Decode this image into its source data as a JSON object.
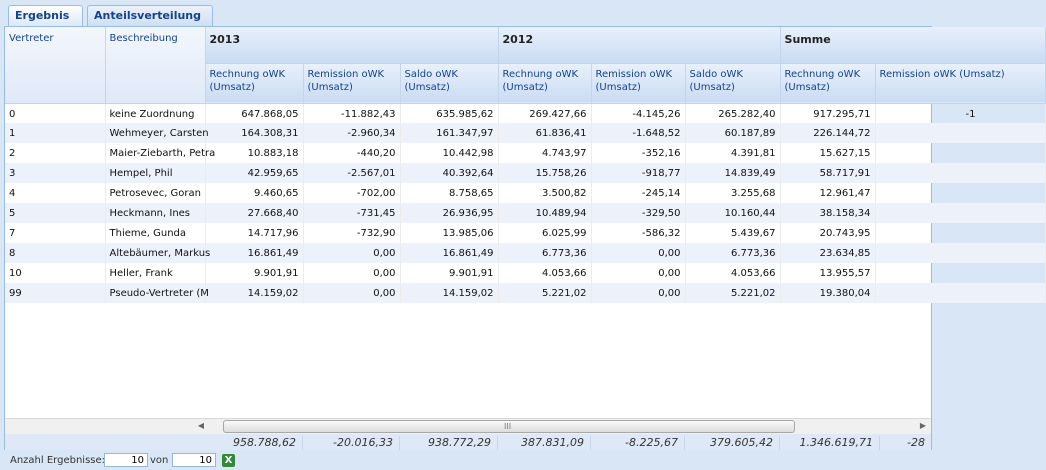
{
  "tabs": [
    {
      "label": "Ergebnis",
      "active": true
    },
    {
      "label": "Anteilsverteilung",
      "active": false
    }
  ],
  "columns": {
    "vertreter": "Vertreter",
    "beschreibung": "Beschreibung",
    "groups": [
      "2013",
      "2012",
      "Summe"
    ],
    "sub": [
      "Rechnung oWK (Umsatz)",
      "Remission oWK (Umsatz)",
      "Saldo oWK (Umsatz)",
      "Rechnung oWK (Umsatz)",
      "Remission oWK (Umsatz)",
      "Saldo oWK (Umsatz)",
      "Rechnung oWK (Umsatz)",
      "Remission oWK (Umsatz)"
    ]
  },
  "rows": [
    {
      "id": "0",
      "name": "keine Zuordnung",
      "v": [
        "647.868,05",
        "-11.882,43",
        "635.985,62",
        "269.427,66",
        "-4.145,26",
        "265.282,40",
        "917.295,71",
        "-1"
      ]
    },
    {
      "id": "1",
      "name": "Wehmeyer, Carsten",
      "v": [
        "164.308,31",
        "-2.960,34",
        "161.347,97",
        "61.836,41",
        "-1.648,52",
        "60.187,89",
        "226.144,72",
        ""
      ]
    },
    {
      "id": "2",
      "name": "Maier-Ziebarth, Petra",
      "v": [
        "10.883,18",
        "-440,20",
        "10.442,98",
        "4.743,97",
        "-352,16",
        "4.391,81",
        "15.627,15",
        ""
      ]
    },
    {
      "id": "3",
      "name": "Hempel, Phil",
      "v": [
        "42.959,65",
        "-2.567,01",
        "40.392,64",
        "15.758,26",
        "-918,77",
        "14.839,49",
        "58.717,91",
        ""
      ]
    },
    {
      "id": "4",
      "name": "Petrosevec, Goran",
      "v": [
        "9.460,65",
        "-702,00",
        "8.758,65",
        "3.500,82",
        "-245,14",
        "3.255,68",
        "12.961,47",
        ""
      ]
    },
    {
      "id": "5",
      "name": "Heckmann, Ines",
      "v": [
        "27.668,40",
        "-731,45",
        "26.936,95",
        "10.489,94",
        "-329,50",
        "10.160,44",
        "38.158,34",
        ""
      ]
    },
    {
      "id": "7",
      "name": "Thieme, Gunda",
      "v": [
        "14.717,96",
        "-732,90",
        "13.985,06",
        "6.025,99",
        "-586,32",
        "5.439,67",
        "20.743,95",
        ""
      ]
    },
    {
      "id": "8",
      "name": "Altebäumer, Markus",
      "v": [
        "16.861,49",
        "0,00",
        "16.861,49",
        "6.773,36",
        "0,00",
        "6.773,36",
        "23.634,85",
        ""
      ]
    },
    {
      "id": "10",
      "name": "Heller, Frank",
      "v": [
        "9.901,91",
        "0,00",
        "9.901,91",
        "4.053,66",
        "0,00",
        "4.053,66",
        "13.955,57",
        ""
      ]
    },
    {
      "id": "99",
      "name": "Pseudo-Vertreter (M",
      "v": [
        "14.159,02",
        "0,00",
        "14.159,02",
        "5.221,02",
        "0,00",
        "5.221,02",
        "19.380,04",
        ""
      ]
    }
  ],
  "totals": [
    "958.788,62",
    "-20.016,33",
    "938.772,29",
    "387.831,09",
    "-8.225,67",
    "379.605,42",
    "1.346.619,71",
    "-28"
  ],
  "scrollbar": {
    "grip": "III"
  },
  "footer": {
    "anzahl_label": "Anzahl Ergebnisse:",
    "shown_value": "10",
    "von_label": "von",
    "total_value": "10",
    "export_icon": "excel-export-icon"
  }
}
